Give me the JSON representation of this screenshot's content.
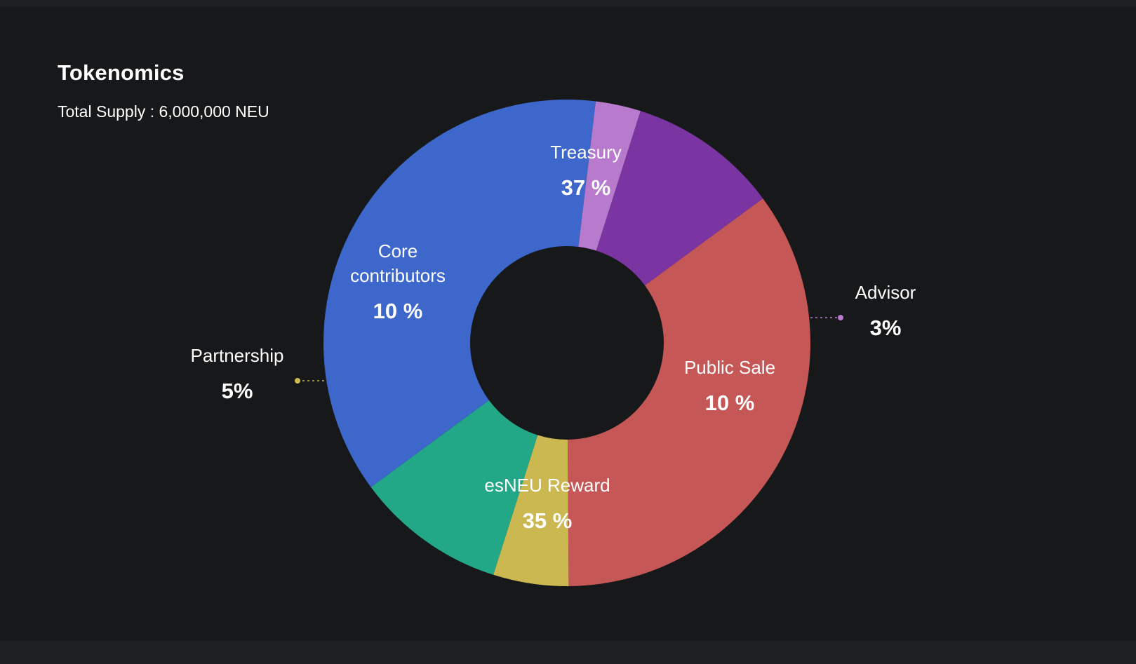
{
  "header": {
    "title": "Tokenomics",
    "subtitle": "Total Supply : 6,000,000 NEU"
  },
  "chart_data": {
    "type": "pie",
    "variant": "donut",
    "title": "Tokenomics",
    "subtitle": "Total Supply : 6,000,000 NEU",
    "slices": [
      {
        "label": "Treasury",
        "value": 37,
        "display": "37 %",
        "color": "#3d67cb"
      },
      {
        "label": "Advisor",
        "value": 3,
        "display": "3%",
        "color": "#b77acd"
      },
      {
        "label": "Public Sale",
        "value": 10,
        "display": "10 %",
        "color": "#7a35a3"
      },
      {
        "label": "esNEU Reward",
        "value": 35,
        "display": "35 %",
        "color": "#c65757"
      },
      {
        "label": "Partnership",
        "value": 5,
        "display": "5%",
        "color": "#ccb851"
      },
      {
        "label": "Core contributors",
        "value": 10,
        "display": "10 %",
        "color": "#22a887"
      }
    ],
    "unit": "%"
  }
}
